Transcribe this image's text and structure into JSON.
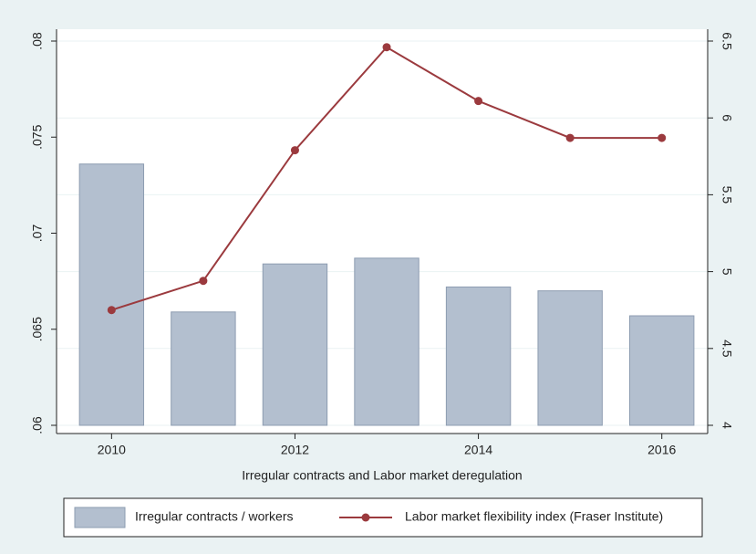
{
  "chart_data": {
    "type": "bar-line",
    "x_label": "Irregular contracts and Labor market deregulation",
    "x": [
      2010,
      2011,
      2012,
      2013,
      2014,
      2015,
      2016
    ],
    "xlim": [
      2009.4,
      2016.5
    ],
    "xticks": [
      2010,
      2012,
      2014,
      2016
    ],
    "ylim": [
      0.06,
      0.08
    ],
    "yticks": [
      {
        "value": 0.06,
        "label": ".06"
      },
      {
        "value": 0.065,
        "label": ".065"
      },
      {
        "value": 0.07,
        "label": ".07"
      },
      {
        "value": 0.075,
        "label": ".075"
      },
      {
        "value": 0.08,
        "label": ".08"
      }
    ],
    "y2lim": [
      4,
      6.5
    ],
    "y2ticks": [
      4,
      4.5,
      5,
      5.5,
      6,
      6.5
    ],
    "grid": true,
    "series": [
      {
        "name": "Irregular contracts / workers",
        "type": "bar",
        "color": "#b3bfcf",
        "values": [
          0.0736,
          0.0659,
          0.0684,
          0.0687,
          0.0672,
          0.067,
          0.0657
        ]
      },
      {
        "name": "Labor market flexibility index (Fraser Institute)",
        "type": "line",
        "axis": "y2",
        "color": "#9b3a3e",
        "values": [
          4.75,
          4.94,
          5.79,
          6.46,
          6.11,
          5.87,
          5.87
        ]
      }
    ]
  }
}
